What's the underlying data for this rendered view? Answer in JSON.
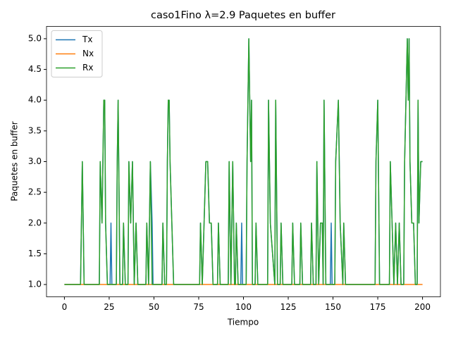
{
  "chart_data": {
    "type": "line",
    "title": "caso1Fino λ=2.9 Paquetes en buffer",
    "x_label": "Tiempo",
    "y_label": "Paquetes en buffer",
    "x": [
      0,
      9,
      9.5,
      10,
      11,
      19.5,
      20,
      21,
      22,
      22.5,
      23,
      24,
      25.5,
      26,
      26.5,
      29,
      29.5,
      30,
      31,
      32.5,
      33,
      34,
      35.5,
      36,
      37,
      38,
      39,
      40,
      41,
      45.5,
      46,
      47,
      48,
      49,
      49.5,
      50,
      54.5,
      55,
      56,
      57,
      57.5,
      58,
      58.5,
      59,
      60,
      61,
      75.5,
      76,
      77,
      78,
      79,
      80,
      81,
      82,
      83,
      85.5,
      86,
      87,
      91.5,
      92,
      93,
      94,
      95,
      95.5,
      96,
      97,
      98.5,
      99,
      99.5,
      101.5,
      102,
      103,
      104,
      104.5,
      105,
      106.5,
      107,
      108,
      113.5,
      114,
      115,
      117.5,
      118,
      119,
      120.5,
      121,
      122,
      127,
      127.5,
      128.5,
      131.5,
      132,
      133,
      137.5,
      138,
      139,
      140.5,
      141,
      142,
      143,
      144,
      144.5,
      145,
      146,
      147,
      148.5,
      149,
      149.5,
      151,
      151.5,
      153,
      154,
      155.5,
      156,
      157,
      173.5,
      174,
      175,
      176,
      181.5,
      182,
      183,
      184,
      185,
      186,
      187,
      188,
      189.5,
      190,
      191.5,
      192,
      192.5,
      193,
      194,
      195,
      196,
      197,
      197.5,
      198,
      199,
      200
    ],
    "series": [
      {
        "name": "Tx",
        "color": "#1f77b4",
        "values": [
          1,
          1,
          2,
          3,
          1,
          1,
          3,
          2,
          4,
          4,
          2,
          1,
          1,
          2,
          1,
          1,
          3,
          4,
          1,
          1,
          2,
          1,
          1,
          3,
          2,
          3,
          1,
          2,
          1,
          1,
          2,
          1,
          3,
          2,
          1,
          1,
          1,
          2,
          1,
          1,
          3,
          4,
          4,
          3,
          2,
          1,
          1,
          2,
          1,
          2,
          3,
          3,
          2,
          2,
          1,
          1,
          2,
          1,
          1,
          3,
          1,
          3,
          1,
          1,
          2,
          1,
          1,
          2,
          1,
          1,
          3,
          5,
          3,
          4,
          1,
          1,
          2,
          1,
          1,
          4,
          2,
          1,
          4,
          1,
          1,
          2,
          1,
          1,
          2,
          1,
          1,
          2,
          1,
          1,
          2,
          1,
          1,
          3,
          1,
          2,
          2,
          1,
          4,
          1,
          1,
          1,
          2,
          1,
          1,
          3,
          4,
          2,
          1,
          2,
          1,
          1,
          3,
          4,
          1,
          1,
          3,
          2,
          1,
          2,
          1,
          2,
          1,
          1,
          3,
          5,
          4,
          5,
          3,
          2,
          2,
          1,
          1,
          4,
          2,
          3,
          3
        ]
      },
      {
        "name": "Nx",
        "color": "#ff7f0e",
        "values": [
          1,
          1,
          1,
          1,
          1,
          1,
          1,
          1,
          1,
          1,
          1,
          1,
          1,
          1,
          1,
          1,
          1,
          1,
          1,
          1,
          1,
          1,
          1,
          1,
          1,
          1,
          1,
          1,
          1,
          1,
          1,
          1,
          1,
          1,
          1,
          1,
          1,
          1,
          1,
          1,
          1,
          1,
          1,
          1,
          1,
          1,
          1,
          1,
          1,
          1,
          1,
          1,
          1,
          1,
          1,
          1,
          1,
          1,
          1,
          1,
          1,
          1,
          1,
          1,
          1,
          1,
          1,
          1,
          1,
          1,
          1,
          1,
          1,
          1,
          1,
          1,
          1,
          1,
          1,
          1,
          1,
          1,
          1,
          1,
          1,
          1,
          1,
          1,
          1,
          1,
          1,
          1,
          1,
          1,
          1,
          1,
          1,
          1,
          1,
          1,
          1,
          1,
          1,
          1,
          1,
          1,
          1,
          1,
          1,
          1,
          1,
          1,
          1,
          1,
          1,
          1,
          1,
          1,
          1,
          1,
          1,
          1,
          1,
          1,
          1,
          1,
          1,
          1,
          1,
          1,
          1,
          1,
          1,
          1,
          1,
          1,
          1,
          1,
          1,
          1,
          1
        ]
      },
      {
        "name": "Rx",
        "color": "#2ca02c",
        "values": [
          1,
          1,
          2,
          3,
          1,
          1,
          3,
          2,
          4,
          4,
          2,
          1,
          1,
          1,
          1,
          1,
          3,
          4,
          1,
          1,
          2,
          1,
          1,
          3,
          2,
          3,
          1,
          2,
          1,
          1,
          2,
          1,
          3,
          1,
          1,
          1,
          1,
          2,
          1,
          1,
          3,
          4,
          4,
          3,
          2,
          1,
          1,
          2,
          1,
          2,
          3,
          3,
          2,
          2,
          1,
          1,
          2,
          1,
          1,
          3,
          1,
          3,
          1,
          1,
          2,
          1,
          1,
          1,
          1,
          1,
          3,
          5,
          3,
          4,
          1,
          1,
          2,
          1,
          1,
          4,
          2,
          1,
          4,
          1,
          1,
          2,
          1,
          1,
          2,
          1,
          1,
          2,
          1,
          1,
          2,
          1,
          1,
          3,
          1,
          2,
          2,
          1,
          4,
          1,
          1,
          1,
          1,
          1,
          1,
          3,
          4,
          2,
          1,
          2,
          1,
          1,
          3,
          4,
          1,
          1,
          3,
          2,
          1,
          2,
          1,
          2,
          1,
          1,
          3,
          5,
          4,
          5,
          3,
          2,
          2,
          1,
          1,
          4,
          2,
          3,
          3
        ]
      }
    ],
    "xlim": [
      -10,
      210
    ],
    "xticks": [
      0,
      25,
      50,
      75,
      100,
      125,
      150,
      175,
      200
    ],
    "ylim": [
      0.8,
      5.2
    ],
    "yticks": [
      {
        "value": 1,
        "label": "1.0"
      },
      {
        "value": 1.5,
        "label": "1.5"
      },
      {
        "value": 2,
        "label": "2.0"
      },
      {
        "value": 2.5,
        "label": "2.5"
      },
      {
        "value": 3,
        "label": "3.0"
      },
      {
        "value": 3.5,
        "label": "3.5"
      },
      {
        "value": 4,
        "label": "4.0"
      },
      {
        "value": 4.5,
        "label": "4.5"
      },
      {
        "value": 5,
        "label": "5.0"
      }
    ],
    "legend": "upper left",
    "grid": false
  }
}
